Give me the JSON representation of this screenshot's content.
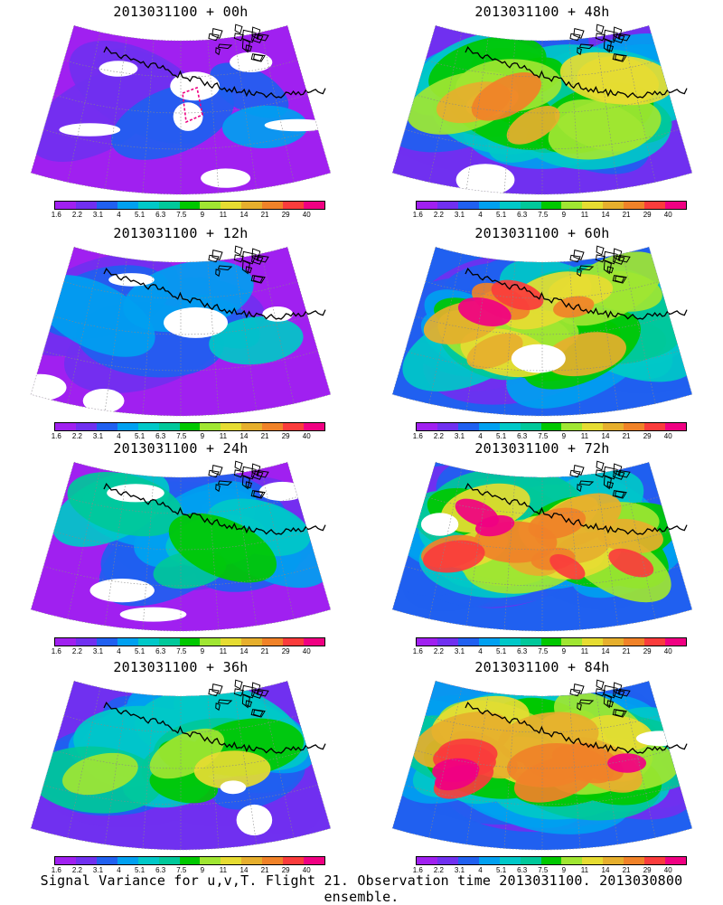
{
  "panels": [
    {
      "title": "2013031100 + 00h"
    },
    {
      "title": "2013031100 + 48h"
    },
    {
      "title": "2013031100 + 12h"
    },
    {
      "title": "2013031100 + 60h"
    },
    {
      "title": "2013031100 + 24h"
    },
    {
      "title": "2013031100 + 72h"
    },
    {
      "title": "2013031100 + 36h"
    },
    {
      "title": "2013031100 + 84h"
    }
  ],
  "colorbar": {
    "labels": [
      "1.6",
      "2.2",
      "3.1",
      "4",
      "5.1",
      "6.3",
      "7.5",
      "9",
      "11",
      "14",
      "21",
      "29",
      "40"
    ],
    "colors": [
      "#a020f0",
      "#7030f0",
      "#2060f0",
      "#00a0f0",
      "#00c8c8",
      "#00c89a",
      "#00c800",
      "#a0e632",
      "#e6dc32",
      "#e6af2d",
      "#f08228",
      "#fa3c3c",
      "#f00082"
    ]
  },
  "caption": "Signal Variance for u,v,T. Flight 21. Observation time 2013031100. 2013030800 ensemble."
}
